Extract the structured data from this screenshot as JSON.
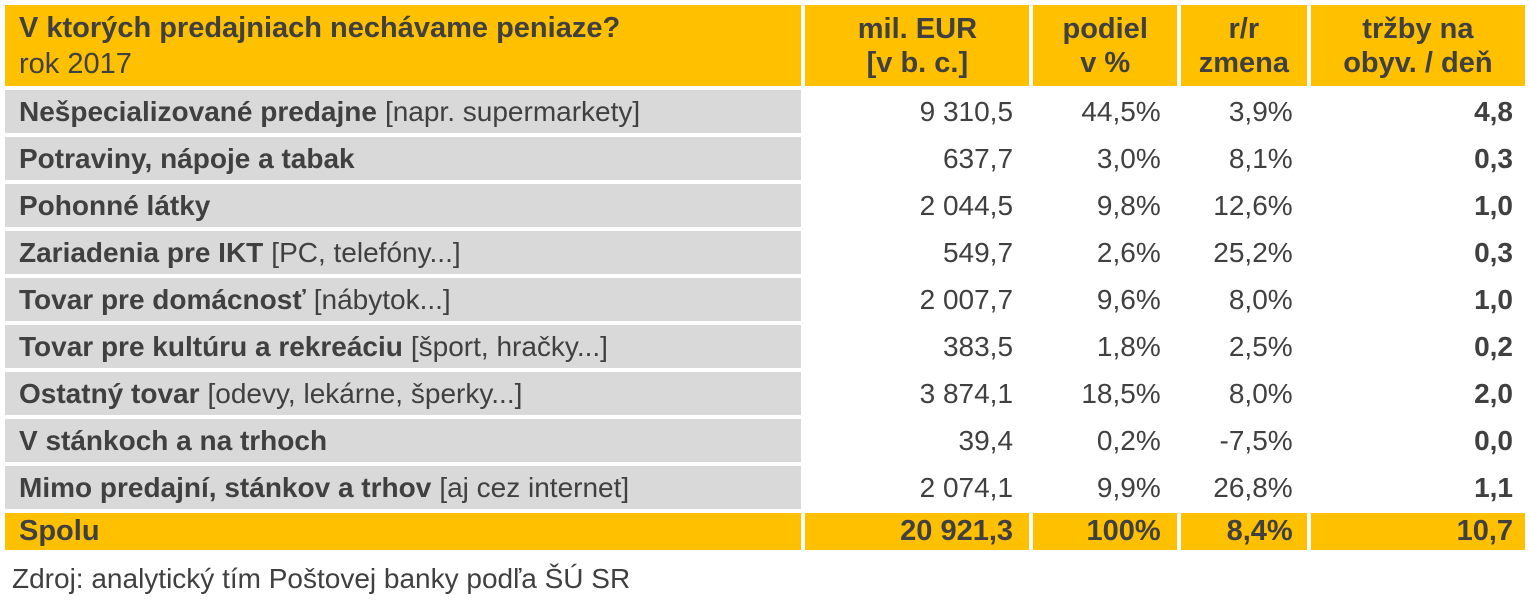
{
  "header": {
    "title": "V ktorých predajniach nechávame peniaze?",
    "subtitle": "rok 2017",
    "columns": [
      [
        "mil. EUR",
        "[v b. c.]"
      ],
      [
        "podiel",
        "v %"
      ],
      [
        "r/r",
        "zmena"
      ],
      [
        "tržby na",
        "obyv. / deň"
      ]
    ]
  },
  "rows": [
    {
      "label": "Nešpecializované predajne",
      "detail": "[napr. supermarkety]",
      "mil_eur": "9 310,5",
      "podiel": "44,5%",
      "rr": "3,9%",
      "trzby": "4,8"
    },
    {
      "label": "Potraviny, nápoje a tabak",
      "detail": "",
      "mil_eur": "637,7",
      "podiel": "3,0%",
      "rr": "8,1%",
      "trzby": "0,3"
    },
    {
      "label": "Pohonné látky",
      "detail": "",
      "mil_eur": "2 044,5",
      "podiel": "9,8%",
      "rr": "12,6%",
      "trzby": "1,0"
    },
    {
      "label": "Zariadenia pre IKT",
      "detail": "[PC, telefóny...]",
      "mil_eur": "549,7",
      "podiel": "2,6%",
      "rr": "25,2%",
      "trzby": "0,3"
    },
    {
      "label": "Tovar pre domácnosť",
      "detail": "[nábytok...]",
      "mil_eur": "2 007,7",
      "podiel": "9,6%",
      "rr": "8,0%",
      "trzby": "1,0"
    },
    {
      "label": "Tovar pre kultúru a rekreáciu",
      "detail": "[šport, hračky...]",
      "mil_eur": "383,5",
      "podiel": "1,8%",
      "rr": "2,5%",
      "trzby": "0,2"
    },
    {
      "label": "Ostatný tovar",
      "detail": "[odevy, lekárne, šperky...]",
      "mil_eur": "3 874,1",
      "podiel": "18,5%",
      "rr": "8,0%",
      "trzby": "2,0"
    },
    {
      "label": "V stánkoch a na trhoch",
      "detail": "",
      "mil_eur": "39,4",
      "podiel": "0,2%",
      "rr": "-7,5%",
      "trzby": "0,0"
    },
    {
      "label": "Mimo predajní, stánkov a trhov",
      "detail": "[aj cez internet]",
      "mil_eur": "2 074,1",
      "podiel": "9,9%",
      "rr": "26,8%",
      "trzby": "1,1"
    }
  ],
  "total": {
    "label": "Spolu",
    "mil_eur": "20 921,3",
    "podiel": "100%",
    "rr": "8,4%",
    "trzby": "10,7"
  },
  "source": "Zdroj: analytický tím Poštovej banky podľa ŠÚ SR",
  "colors": {
    "header_bg": "#ffc000",
    "label_bg": "#d9d9d9",
    "text": "#404040"
  },
  "chart_data": {
    "type": "table",
    "title": "V ktorých predajniach nechávame peniaze?",
    "subtitle": "rok 2017",
    "columns": [
      "mil. EUR [v b. c.]",
      "podiel v %",
      "r/r zmena",
      "tržby na obyv. / deň"
    ],
    "row_labels": [
      "Nešpecializované predajne",
      "Potraviny, nápoje a tabak",
      "Pohonné látky",
      "Zariadenia pre IKT",
      "Tovar pre domácnosť",
      "Tovar pre kultúru a rekreáciu",
      "Ostatný tovar",
      "V stánkoch a na trhoch",
      "Mimo predajní, stánkov a trhov",
      "Spolu"
    ],
    "values": [
      [
        9310.5,
        44.5,
        3.9,
        4.8
      ],
      [
        637.7,
        3.0,
        8.1,
        0.3
      ],
      [
        2044.5,
        9.8,
        12.6,
        1.0
      ],
      [
        549.7,
        2.6,
        25.2,
        0.3
      ],
      [
        2007.7,
        9.6,
        8.0,
        1.0
      ],
      [
        383.5,
        1.8,
        2.5,
        0.2
      ],
      [
        3874.1,
        18.5,
        8.0,
        2.0
      ],
      [
        39.4,
        0.2,
        -7.5,
        0.0
      ],
      [
        2074.1,
        9.9,
        26.8,
        1.1
      ],
      [
        20921.3,
        100,
        8.4,
        10.7
      ]
    ]
  }
}
